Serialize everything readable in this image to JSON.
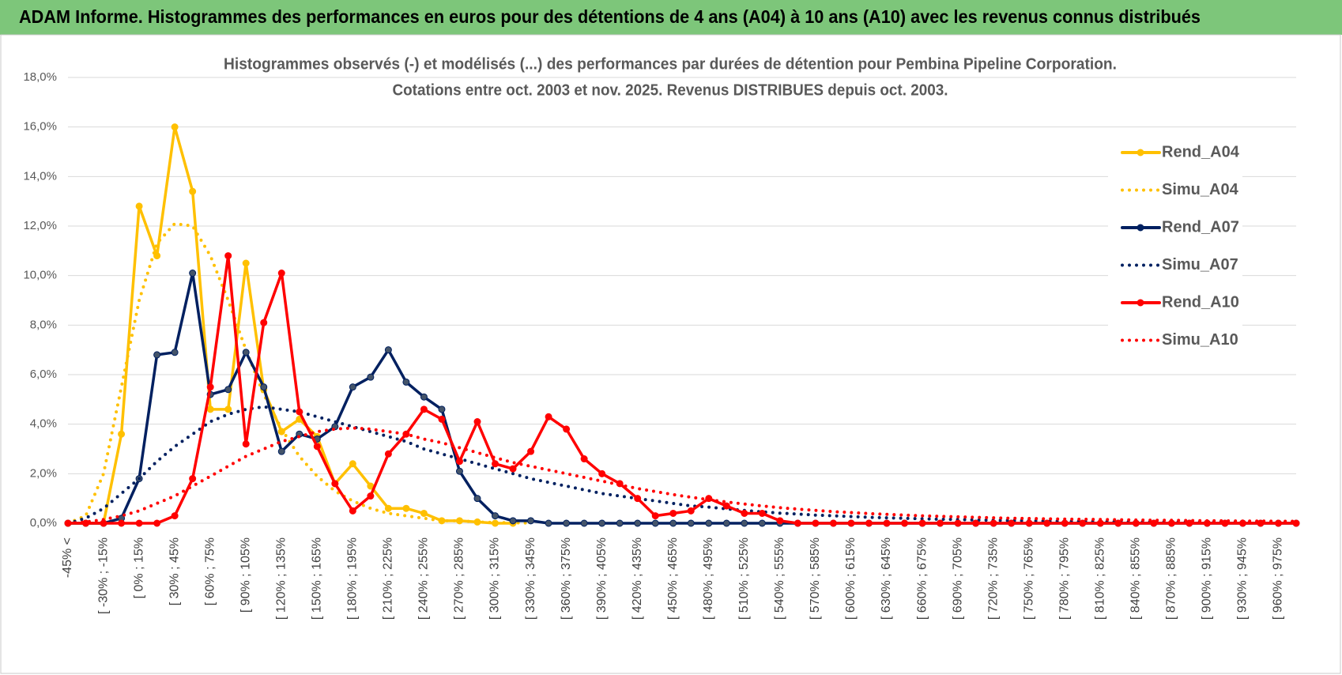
{
  "header": {
    "title": "ADAM Informe. Histogrammes des performances en euros pour des détentions de 4 ans (A04) à 10 ans (A10) avec les revenus connus distribués"
  },
  "chart_data": {
    "type": "line",
    "title": "Histogrammes observés (-) et modélisés (...) des performances par durées de détention pour Pembina Pipeline Corporation.",
    "subtitle": "Cotations entre oct. 2003 et nov. 2025. Revenus DISTRIBUES depuis oct. 2003.",
    "categories": [
      "-45% <",
      null,
      "[ -30% ; -15%",
      null,
      "[ 0% ; 15%",
      null,
      "[ 30% ; 45%",
      null,
      "[ 60% ; 75%",
      null,
      "[ 90% ; 105%",
      null,
      "[ 120% ; 135%",
      null,
      "[ 150% ; 165%",
      null,
      "[ 180% ; 195%",
      null,
      "[ 210% ; 225%",
      null,
      "[ 240% ; 255%",
      null,
      "[ 270% ; 285%",
      null,
      "[ 300% ; 315%",
      null,
      "[ 330% ; 345%",
      null,
      "[ 360% ; 375%",
      null,
      "[ 390% ; 405%",
      null,
      "[ 420% ; 435%",
      null,
      "[ 450% ; 465%",
      null,
      "[ 480% ; 495%",
      null,
      "[ 510% ; 525%",
      null,
      "[ 540% ; 555%",
      null,
      "[ 570% ; 585%",
      null,
      "[ 600% ; 615%",
      null,
      "[ 630% ; 645%",
      null,
      "[ 660% ; 675%",
      null,
      "[ 690% ; 705%",
      null,
      "[ 720% ; 735%",
      null,
      "[ 750% ; 765%",
      null,
      "[ 780% ; 795%",
      null,
      "[ 810% ; 825%",
      null,
      "[ 840% ; 855%",
      null,
      "[ 870% ; 885%",
      null,
      "[ 900% ; 915%",
      null,
      "[ 930% ; 945%",
      null,
      "[ 960% ; 975%",
      null
    ],
    "series": [
      {
        "name": "Rend_A04",
        "color": "#ffc000",
        "dash": "solid",
        "markers": true,
        "values": [
          0,
          0,
          0,
          3.6,
          12.8,
          10.8,
          16.0,
          13.4,
          4.6,
          4.6,
          10.5,
          5.4,
          3.7,
          4.2,
          3.5,
          1.6,
          2.4,
          1.5,
          0.6,
          0.6,
          0.4,
          0.1,
          0.1,
          0.05,
          0,
          0,
          null,
          null,
          null,
          null,
          null,
          null,
          null,
          null,
          null,
          null,
          null,
          null,
          null,
          null,
          null,
          null,
          null,
          null,
          null,
          null,
          null,
          null,
          null,
          null,
          null,
          null,
          null,
          null,
          null,
          null,
          null,
          null,
          null,
          null,
          null,
          null,
          null,
          null,
          null,
          null,
          null,
          null,
          null,
          null
        ]
      },
      {
        "name": "Simu_A04",
        "color": "#ffc000",
        "dash": "dotted",
        "markers": false,
        "values": [
          0,
          0.3,
          2,
          5.5,
          9,
          11.3,
          12.1,
          12.0,
          10.8,
          9,
          7,
          5.2,
          3.8,
          2.7,
          1.9,
          1.3,
          0.9,
          0.6,
          0.4,
          0.3,
          0.2,
          0.1,
          0.1,
          0.05,
          0.03,
          0.02,
          0.01,
          null,
          null,
          null,
          null,
          null,
          null,
          null,
          null,
          null,
          null,
          null,
          null,
          null,
          null,
          null,
          null,
          null,
          null,
          null,
          null,
          null,
          null,
          null,
          null,
          null,
          null,
          null,
          null,
          null,
          null,
          null,
          null,
          null,
          null,
          null,
          null,
          null,
          null,
          null,
          null,
          null,
          null,
          null
        ]
      },
      {
        "name": "Rend_A07",
        "color": "#002060",
        "dash": "solid",
        "markers": true,
        "values": [
          0,
          0,
          0,
          0.2,
          1.8,
          6.8,
          6.9,
          10.1,
          5.2,
          5.4,
          6.9,
          5.5,
          2.9,
          3.6,
          3.4,
          3.9,
          5.5,
          5.9,
          7.0,
          5.7,
          5.1,
          4.6,
          2.1,
          1.0,
          0.3,
          0.1,
          0.1,
          0,
          0,
          0,
          0,
          0,
          0,
          0,
          0,
          0,
          0,
          0,
          0,
          0,
          0,
          0,
          0,
          0,
          0,
          0,
          0,
          0,
          0,
          0,
          0,
          0,
          0,
          0,
          0,
          0,
          0,
          0,
          0,
          0,
          0,
          0,
          0,
          0,
          0,
          0,
          0,
          0,
          0,
          0
        ]
      },
      {
        "name": "Simu_A07",
        "color": "#002060",
        "dash": "dotted",
        "markers": false,
        "values": [
          0,
          0.2,
          0.6,
          1.2,
          1.8,
          2.5,
          3.1,
          3.6,
          4.1,
          4.4,
          4.6,
          4.7,
          4.6,
          4.5,
          4.3,
          4.1,
          3.9,
          3.7,
          3.5,
          3.3,
          3.0,
          2.8,
          2.6,
          2.4,
          2.2,
          2.0,
          1.8,
          1.65,
          1.5,
          1.35,
          1.2,
          1.1,
          1.0,
          0.9,
          0.8,
          0.7,
          0.65,
          0.58,
          0.52,
          0.46,
          0.41,
          0.37,
          0.33,
          0.3,
          0.27,
          0.24,
          0.22,
          0.2,
          0.18,
          0.16,
          0.15,
          0.13,
          0.12,
          0.11,
          0.1,
          0.09,
          0.08,
          0.07,
          0.07,
          0.06,
          0.06,
          0.05,
          0.05,
          0.04,
          0.04,
          0.04,
          0.03,
          0.03,
          0.03,
          0.03
        ]
      },
      {
        "name": "Rend_A10",
        "color": "#ff0000",
        "dash": "solid",
        "markers": true,
        "values": [
          0,
          0,
          0,
          0,
          0,
          0,
          0.3,
          1.8,
          5.5,
          10.8,
          3.2,
          8.1,
          10.1,
          4.5,
          3.1,
          1.6,
          0.5,
          1.1,
          2.8,
          3.6,
          4.6,
          4.2,
          2.5,
          4.1,
          2.4,
          2.2,
          2.9,
          4.3,
          3.8,
          2.6,
          2.0,
          1.6,
          1.0,
          0.3,
          0.4,
          0.5,
          1.0,
          0.7,
          0.4,
          0.4,
          0.1,
          0,
          0,
          0,
          0,
          0,
          0,
          0,
          0,
          0,
          0,
          0,
          0,
          0,
          0,
          0,
          0,
          0,
          0,
          0,
          0,
          0,
          0,
          0,
          0,
          0,
          0,
          0,
          0,
          0
        ]
      },
      {
        "name": "Simu_A10",
        "color": "#ff0000",
        "dash": "dotted",
        "markers": false,
        "values": [
          0,
          0.05,
          0.15,
          0.3,
          0.5,
          0.8,
          1.1,
          1.5,
          1.9,
          2.3,
          2.7,
          3.0,
          3.3,
          3.5,
          3.7,
          3.8,
          3.85,
          3.8,
          3.7,
          3.6,
          3.4,
          3.25,
          3.05,
          2.85,
          2.65,
          2.45,
          2.3,
          2.15,
          2.0,
          1.85,
          1.7,
          1.55,
          1.4,
          1.28,
          1.16,
          1.05,
          0.95,
          0.86,
          0.78,
          0.7,
          0.63,
          0.57,
          0.52,
          0.47,
          0.43,
          0.39,
          0.36,
          0.33,
          0.3,
          0.28,
          0.26,
          0.24,
          0.22,
          0.2,
          0.19,
          0.18,
          0.17,
          0.16,
          0.15,
          0.14,
          0.13,
          0.12,
          0.12,
          0.11,
          0.1,
          0.1,
          0.09,
          0.09,
          0.08,
          0.08
        ]
      }
    ],
    "ylim": [
      0,
      18
    ],
    "yticks": [
      {
        "value": 0,
        "label": "0,0%"
      },
      {
        "value": 2,
        "label": "2,0%"
      },
      {
        "value": 4,
        "label": "4,0%"
      },
      {
        "value": 6,
        "label": "6,0%"
      },
      {
        "value": 8,
        "label": "8,0%"
      },
      {
        "value": 10,
        "label": "10,0%"
      },
      {
        "value": 12,
        "label": "12,0%"
      },
      {
        "value": 14,
        "label": "14,0%"
      },
      {
        "value": 16,
        "label": "16,0%"
      },
      {
        "value": 18,
        "label": "18,0%"
      }
    ],
    "grid": true,
    "legend": "right"
  }
}
